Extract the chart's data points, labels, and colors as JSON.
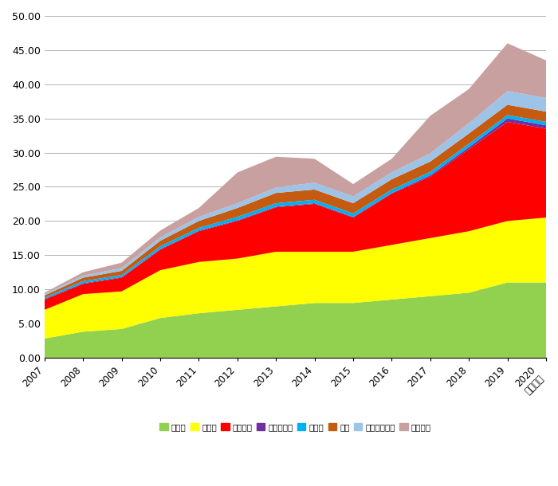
{
  "years": [
    "2007",
    "2008",
    "2009",
    "2010",
    "2011",
    "2012",
    "2013",
    "2014",
    "2015",
    "2016",
    "2017",
    "2018",
    "2019",
    "2020\n（見込）"
  ],
  "series": {
    "大豆油": [
      2.8,
      3.8,
      4.2,
      5.8,
      6.5,
      7.0,
      7.5,
      8.0,
      8.0,
      8.5,
      9.0,
      9.5,
      11.0,
      11.0
    ],
    "菜種油": [
      4.2,
      5.5,
      5.5,
      7.0,
      7.5,
      7.5,
      8.0,
      7.5,
      7.5,
      8.0,
      8.5,
      9.0,
      9.0,
      9.5
    ],
    "パーム油": [
      1.5,
      1.5,
      2.0,
      3.0,
      4.5,
      5.5,
      6.5,
      7.0,
      5.0,
      7.5,
      9.0,
      12.0,
      14.5,
      13.0
    ],
    "ひまわり油": [
      0.1,
      0.1,
      0.1,
      0.1,
      0.1,
      0.1,
      0.1,
      0.1,
      0.1,
      0.1,
      0.2,
      0.3,
      0.5,
      0.5
    ],
    "やし油": [
      0.2,
      0.3,
      0.3,
      0.4,
      0.4,
      0.5,
      0.5,
      0.5,
      0.5,
      0.5,
      0.5,
      0.5,
      0.5,
      0.5
    ],
    "牛脂": [
      0.3,
      0.5,
      0.6,
      0.8,
      1.0,
      1.3,
      1.5,
      1.5,
      1.5,
      1.5,
      1.5,
      1.5,
      1.5,
      1.5
    ],
    "その他の油脂": [
      0.2,
      0.3,
      0.4,
      0.5,
      0.6,
      0.7,
      0.8,
      1.0,
      1.0,
      1.0,
      1.2,
      1.5,
      2.0,
      2.0
    ],
    "廃食用油": [
      0.2,
      0.5,
      0.8,
      1.0,
      1.3,
      4.5,
      4.5,
      3.5,
      1.8,
      2.0,
      5.5,
      5.0,
      7.0,
      5.5
    ]
  },
  "colors": {
    "大豆油": "#92D050",
    "菜種油": "#FFFF00",
    "パーム油": "#FF0000",
    "ひまわり油": "#7030A0",
    "やし油": "#00B0F0",
    "牛脂": "#C55A11",
    "その他の油脂": "#9DC3E6",
    "廃食用油": "#C9A0A0"
  },
  "legend_labels": [
    "大豆油",
    "菜種油",
    "パーム油",
    "ひまわり油",
    "やし油",
    "牛脂",
    "その他の油脂",
    "廃食用油"
  ],
  "ylim": [
    0,
    50
  ],
  "yticks": [
    0.0,
    5.0,
    10.0,
    15.0,
    20.0,
    25.0,
    30.0,
    35.0,
    40.0,
    45.0,
    50.0
  ],
  "background_color": "#ffffff",
  "grid_color": "#aaaaaa",
  "figsize": [
    7.0,
    6.1
  ],
  "dpi": 100
}
